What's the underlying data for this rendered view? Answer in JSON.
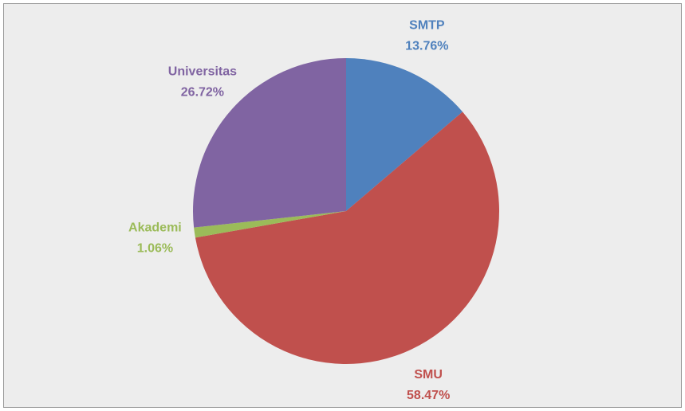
{
  "chart_data": {
    "type": "pie",
    "categories": [
      "SMTP",
      "SMU",
      "Akademi",
      "Universitas"
    ],
    "values": [
      13.76,
      58.47,
      1.06,
      26.72
    ],
    "value_labels": [
      "13.76%",
      "58.47%",
      "1.06%",
      "26.72%"
    ],
    "colors": [
      "#4f81bd",
      "#c0504d",
      "#9bbb59",
      "#8064a2"
    ]
  }
}
